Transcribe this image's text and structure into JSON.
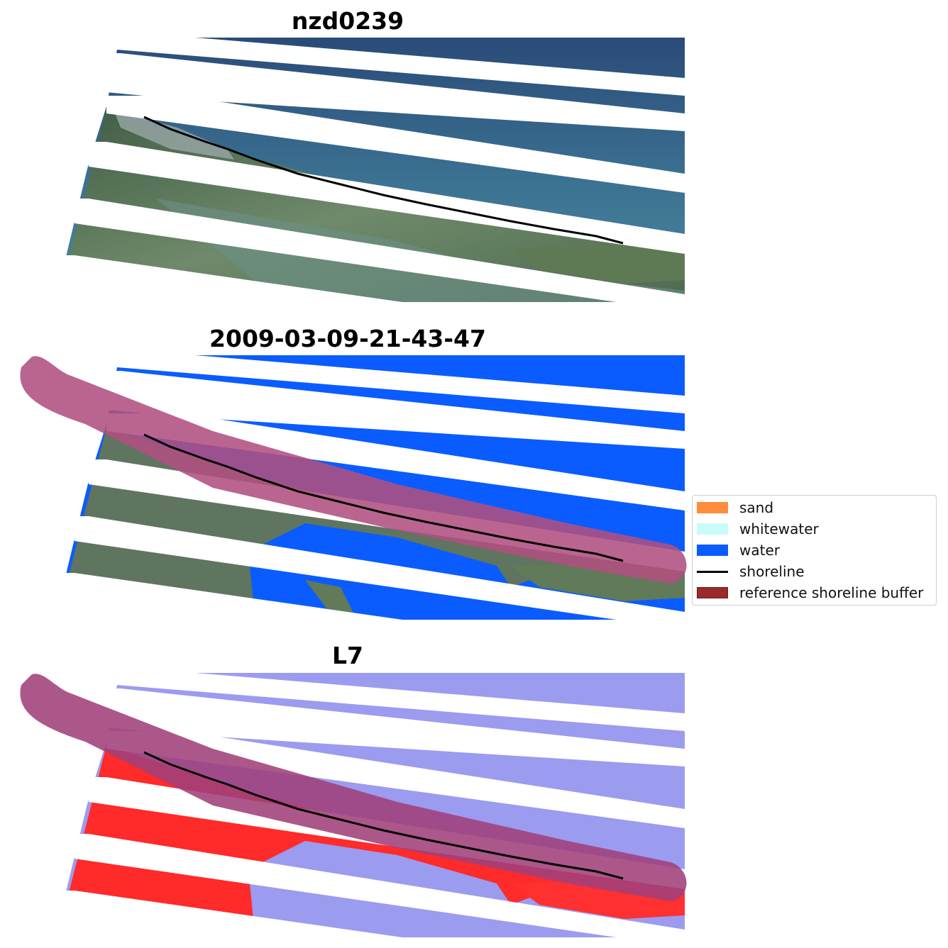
{
  "panels": [
    {
      "title": "nzd0239"
    },
    {
      "title": "2009-03-09-21-43-47"
    },
    {
      "title": "L7"
    }
  ],
  "legend": {
    "items": [
      {
        "label": "sand",
        "color": "#ff8c3a"
      },
      {
        "label": "whitewater",
        "color": "#c9fbfb"
      },
      {
        "label": "water",
        "color": "#0a5cff"
      },
      {
        "label": "shoreline",
        "color": "#000000"
      },
      {
        "label": "reference shoreline buffer",
        "color": "#9b2a2a"
      }
    ]
  },
  "colors": {
    "rgb_sea_dark": "#2f4f78",
    "rgb_sea_light": "#3d7c95",
    "rgb_land": "#5f7a55",
    "class_water": "#0a5cff",
    "buffer": "#b0507f",
    "mndwi_water": "#9b9bf0",
    "mndwi_land": "#ff2a2a"
  }
}
